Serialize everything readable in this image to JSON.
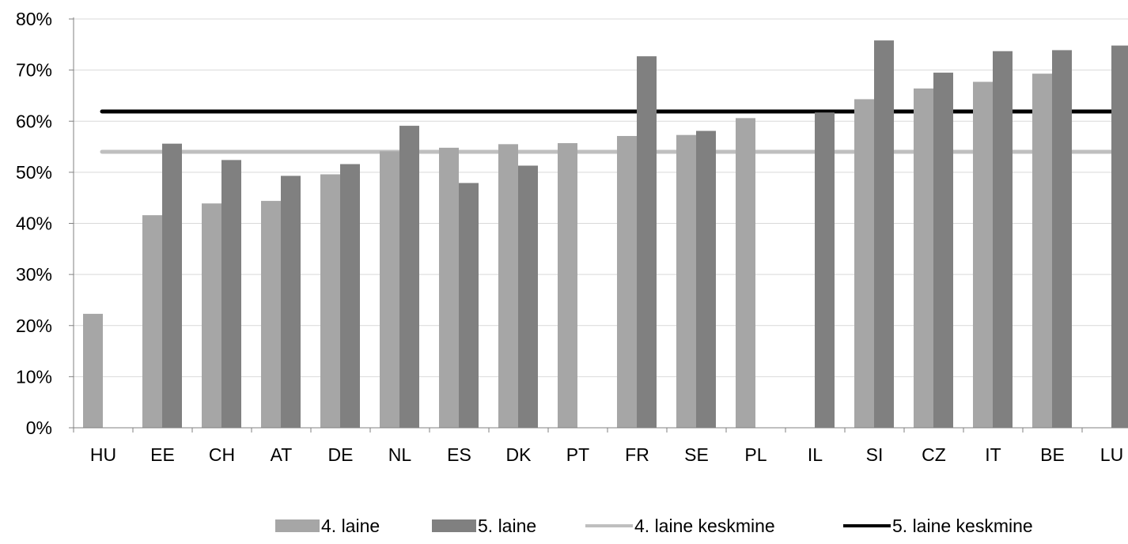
{
  "chart_data": {
    "type": "bar",
    "categories": [
      "HU",
      "EE",
      "CH",
      "AT",
      "DE",
      "NL",
      "ES",
      "DK",
      "PT",
      "FR",
      "SE",
      "PL",
      "IL",
      "SI",
      "CZ",
      "IT",
      "BE",
      "LU"
    ],
    "series": [
      {
        "name": "4. laine",
        "color": "#a6a6a6",
        "values": [
          22.3,
          41.6,
          43.9,
          44.4,
          49.6,
          54.1,
          54.8,
          55.5,
          55.7,
          57.1,
          57.3,
          60.6,
          null,
          64.3,
          66.4,
          67.7,
          69.3,
          null
        ]
      },
      {
        "name": "5. laine",
        "color": "#808080",
        "values": [
          null,
          55.6,
          52.4,
          49.3,
          51.6,
          59.1,
          47.9,
          51.3,
          null,
          72.7,
          58.1,
          null,
          61.7,
          75.8,
          69.5,
          73.7,
          73.9,
          74.8
        ]
      }
    ],
    "reference_lines": [
      {
        "name": "4. laine keskmine",
        "value": 54.0,
        "color": "#bfbfbf"
      },
      {
        "name": "5. laine keskmine",
        "value": 61.9,
        "color": "#000000"
      }
    ],
    "y_ticks": [
      "0%",
      "10%",
      "20%",
      "30%",
      "40%",
      "50%",
      "60%",
      "70%",
      "80%"
    ],
    "ylim": [
      0,
      80
    ],
    "grid": true,
    "legend_position": "bottom"
  }
}
